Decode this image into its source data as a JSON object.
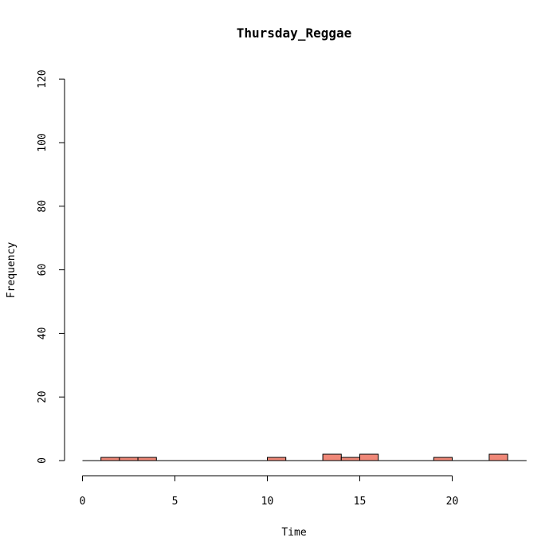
{
  "chart_data": {
    "type": "bar",
    "title": "Thursday_Reggae",
    "xlabel": "Time",
    "ylabel": "Frequency",
    "xlim": [
      0,
      24
    ],
    "ylim": [
      0,
      120
    ],
    "x_ticks": [
      0,
      5,
      10,
      15,
      20
    ],
    "y_ticks": [
      0,
      20,
      40,
      60,
      80,
      100,
      120
    ],
    "bin_width": 1,
    "bins": [
      {
        "start": 0,
        "end": 1,
        "count": 0
      },
      {
        "start": 1,
        "end": 2,
        "count": 1
      },
      {
        "start": 2,
        "end": 3,
        "count": 1
      },
      {
        "start": 3,
        "end": 4,
        "count": 1
      },
      {
        "start": 4,
        "end": 5,
        "count": 0
      },
      {
        "start": 5,
        "end": 6,
        "count": 0
      },
      {
        "start": 6,
        "end": 7,
        "count": 0
      },
      {
        "start": 7,
        "end": 8,
        "count": 0
      },
      {
        "start": 8,
        "end": 9,
        "count": 0
      },
      {
        "start": 9,
        "end": 10,
        "count": 0
      },
      {
        "start": 10,
        "end": 11,
        "count": 1
      },
      {
        "start": 11,
        "end": 12,
        "count": 0
      },
      {
        "start": 12,
        "end": 13,
        "count": 0
      },
      {
        "start": 13,
        "end": 14,
        "count": 2
      },
      {
        "start": 14,
        "end": 15,
        "count": 1
      },
      {
        "start": 15,
        "end": 16,
        "count": 2
      },
      {
        "start": 16,
        "end": 17,
        "count": 0
      },
      {
        "start": 17,
        "end": 18,
        "count": 0
      },
      {
        "start": 18,
        "end": 19,
        "count": 0
      },
      {
        "start": 19,
        "end": 20,
        "count": 1
      },
      {
        "start": 20,
        "end": 21,
        "count": 0
      },
      {
        "start": 21,
        "end": 22,
        "count": 0
      },
      {
        "start": 22,
        "end": 23,
        "count": 2
      },
      {
        "start": 23,
        "end": 24,
        "count": 0
      }
    ],
    "bar_color": "#f08878",
    "grid": false
  }
}
